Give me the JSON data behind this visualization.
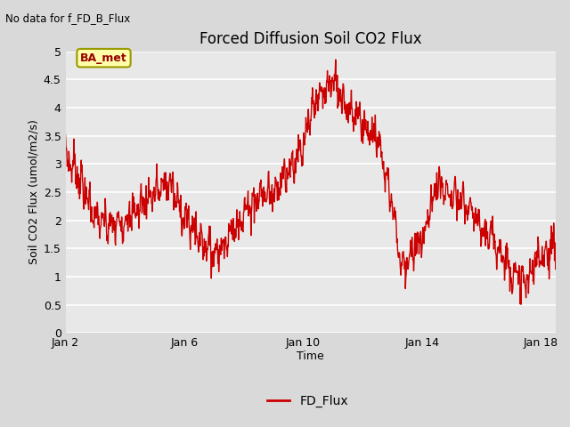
{
  "title": "Forced Diffusion Soil CO2 Flux",
  "subtitle": "No data for f_FD_B_Flux",
  "ylabel": "Soil CO2 Flux (umol/m2/s)",
  "xlabel": "Time",
  "ylim": [
    0.0,
    5.0
  ],
  "yticks": [
    0.0,
    0.5,
    1.0,
    1.5,
    2.0,
    2.5,
    3.0,
    3.5,
    4.0,
    4.5,
    5.0
  ],
  "xtick_positions": [
    0,
    4,
    8,
    12,
    16
  ],
  "xtick_labels": [
    "Jan 2",
    "Jan 6",
    "Jan 10",
    "Jan 14",
    "Jan 18"
  ],
  "line_color": "#cc0000",
  "line_width": 1.0,
  "legend_label": "FD_Flux",
  "bg_color": "#d9d9d9",
  "plot_bg_color": "#e8e8e8",
  "annotation_text": "BA_met",
  "annotation_box_facecolor": "#ffffaa",
  "annotation_box_edgecolor": "#999900",
  "annotation_text_color": "#990000",
  "title_fontsize": 12,
  "axis_fontsize": 9,
  "tick_fontsize": 9
}
